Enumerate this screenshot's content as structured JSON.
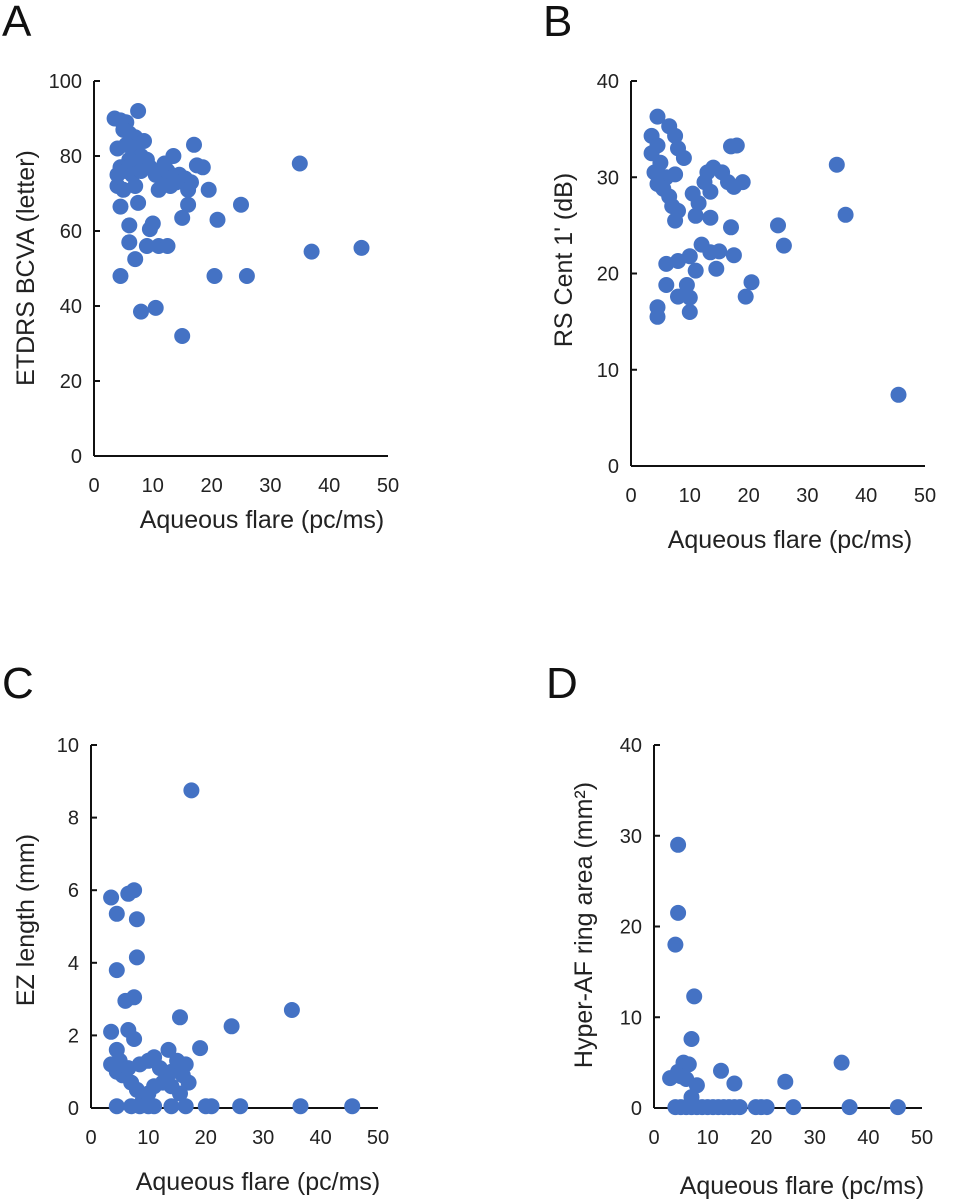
{
  "figure": {
    "panels": [
      "A",
      "B",
      "C",
      "D"
    ]
  },
  "chart_data": [
    {
      "id": "A",
      "type": "scatter",
      "panel_label": "A",
      "title": "",
      "xlabel": "Aqueous flare (pc/ms)",
      "ylabel": "ETDRS BCVA (letter)",
      "xlim": [
        0,
        50
      ],
      "ylim": [
        0,
        100
      ],
      "xticks": [
        "0",
        "10",
        "20",
        "30",
        "40",
        "50"
      ],
      "yticks": [
        "0",
        "20",
        "40",
        "60",
        "80",
        "100"
      ],
      "xtick_values": [
        0,
        10,
        20,
        30,
        40,
        50
      ],
      "ytick_values": [
        0,
        20,
        40,
        60,
        80,
        100
      ],
      "color": "#4472C4",
      "grid": false,
      "points": [
        [
          3.5,
          90
        ],
        [
          4.5,
          89.5
        ],
        [
          5.5,
          89
        ],
        [
          7.5,
          92
        ],
        [
          5,
          87
        ],
        [
          6,
          86
        ],
        [
          7,
          85
        ],
        [
          8.5,
          84
        ],
        [
          4,
          82
        ],
        [
          5.5,
          83
        ],
        [
          7,
          82
        ],
        [
          8,
          80
        ],
        [
          9,
          79
        ],
        [
          6,
          79
        ],
        [
          7.5,
          78
        ],
        [
          4.5,
          77
        ],
        [
          5.5,
          76
        ],
        [
          4,
          75
        ],
        [
          6.5,
          75
        ],
        [
          8,
          76
        ],
        [
          9.5,
          77
        ],
        [
          10.5,
          75
        ],
        [
          11.5,
          74
        ],
        [
          12.5,
          76
        ],
        [
          13.5,
          80
        ],
        [
          12,
          78
        ],
        [
          14.5,
          75
        ],
        [
          15.5,
          74
        ],
        [
          16.5,
          73
        ],
        [
          17,
          83
        ],
        [
          17.5,
          77.5
        ],
        [
          18.5,
          77
        ],
        [
          13,
          72
        ],
        [
          14,
          73
        ],
        [
          11,
          71
        ],
        [
          16,
          71
        ],
        [
          19.5,
          71
        ],
        [
          4,
          72
        ],
        [
          5,
          71
        ],
        [
          7,
          72
        ],
        [
          4.5,
          66.5
        ],
        [
          7.5,
          67.5
        ],
        [
          16,
          67
        ],
        [
          25,
          67
        ],
        [
          21,
          63
        ],
        [
          15,
          63.5
        ],
        [
          10,
          62
        ],
        [
          9.5,
          60.5
        ],
        [
          6,
          61.5
        ],
        [
          6,
          57
        ],
        [
          9,
          56
        ],
        [
          11,
          56
        ],
        [
          12.5,
          56
        ],
        [
          7,
          52.5
        ],
        [
          4.5,
          48
        ],
        [
          20.5,
          48
        ],
        [
          26,
          48
        ],
        [
          35,
          78
        ],
        [
          37,
          54.5
        ],
        [
          45.5,
          55.5
        ],
        [
          8,
          38.5
        ],
        [
          10.5,
          39.5
        ],
        [
          15,
          32
        ]
      ]
    },
    {
      "id": "B",
      "type": "scatter",
      "panel_label": "B",
      "title": "",
      "xlabel": "Aqueous flare (pc/ms)",
      "ylabel": "RS Cent 1' (dB)",
      "xlim": [
        0,
        50
      ],
      "ylim": [
        0,
        40
      ],
      "xticks": [
        "0",
        "10",
        "20",
        "30",
        "40",
        "50"
      ],
      "yticks": [
        "0",
        "10",
        "20",
        "30",
        "40"
      ],
      "xtick_values": [
        0,
        10,
        20,
        30,
        40,
        50
      ],
      "ytick_values": [
        0,
        10,
        20,
        30,
        40
      ],
      "color": "#4472C4",
      "grid": false,
      "points": [
        [
          4.5,
          36.3
        ],
        [
          3.5,
          34.3
        ],
        [
          6.5,
          35.3
        ],
        [
          7.5,
          34.3
        ],
        [
          4.5,
          33.3
        ],
        [
          8,
          33
        ],
        [
          9,
          32
        ],
        [
          3.5,
          32.5
        ],
        [
          5,
          31.5
        ],
        [
          4,
          30.5
        ],
        [
          6,
          30
        ],
        [
          7.5,
          30.3
        ],
        [
          4.5,
          29.3
        ],
        [
          5.5,
          28.8
        ],
        [
          6.5,
          28
        ],
        [
          7,
          27
        ],
        [
          8,
          26.5
        ],
        [
          10.5,
          28.3
        ],
        [
          11.5,
          27.3
        ],
        [
          12.5,
          29.5
        ],
        [
          13,
          30.5
        ],
        [
          14,
          31
        ],
        [
          15.5,
          30.5
        ],
        [
          16.5,
          29.5
        ],
        [
          17.5,
          29
        ],
        [
          19,
          29.5
        ],
        [
          17,
          33.2
        ],
        [
          18,
          33.3
        ],
        [
          13.5,
          28.5
        ],
        [
          11,
          26
        ],
        [
          13.5,
          25.8
        ],
        [
          7.5,
          25.5
        ],
        [
          17,
          24.8
        ],
        [
          25,
          25
        ],
        [
          26,
          22.9
        ],
        [
          12,
          23
        ],
        [
          13.5,
          22.2
        ],
        [
          15,
          22.3
        ],
        [
          17.5,
          21.9
        ],
        [
          14.5,
          20.5
        ],
        [
          8,
          21.3
        ],
        [
          10,
          21.8
        ],
        [
          6,
          21
        ],
        [
          11,
          20.3
        ],
        [
          6,
          18.8
        ],
        [
          9.5,
          18.8
        ],
        [
          8,
          17.6
        ],
        [
          10,
          17.5
        ],
        [
          20.5,
          19.1
        ],
        [
          19.5,
          17.6
        ],
        [
          4.5,
          16.5
        ],
        [
          4.5,
          15.5
        ],
        [
          10,
          16
        ],
        [
          35,
          31.3
        ],
        [
          36.5,
          26.1
        ],
        [
          45.5,
          7.4
        ]
      ]
    },
    {
      "id": "C",
      "type": "scatter",
      "panel_label": "C",
      "title": "",
      "xlabel": "Aqueous flare (pc/ms)",
      "ylabel": "EZ length (mm)",
      "xlim": [
        0,
        50
      ],
      "ylim": [
        0,
        10
      ],
      "xticks": [
        "0",
        "10",
        "20",
        "30",
        "40",
        "50"
      ],
      "yticks": [
        "0",
        "2",
        "4",
        "6",
        "8",
        "10"
      ],
      "xtick_values": [
        0,
        10,
        20,
        30,
        40,
        50
      ],
      "ytick_values": [
        0,
        2,
        4,
        6,
        8,
        10
      ],
      "color": "#4472C4",
      "grid": false,
      "points": [
        [
          17.5,
          8.75
        ],
        [
          3.5,
          5.8
        ],
        [
          6.5,
          5.9
        ],
        [
          7.5,
          6.0
        ],
        [
          4.5,
          5.35
        ],
        [
          8,
          5.2
        ],
        [
          8,
          4.15
        ],
        [
          4.5,
          3.8
        ],
        [
          6,
          2.95
        ],
        [
          7.5,
          3.05
        ],
        [
          15.5,
          2.5
        ],
        [
          24.5,
          2.25
        ],
        [
          35,
          2.7
        ],
        [
          19,
          1.65
        ],
        [
          3.5,
          2.1
        ],
        [
          6.5,
          2.15
        ],
        [
          7.5,
          1.9
        ],
        [
          4.5,
          1.6
        ],
        [
          5,
          1.3
        ],
        [
          3.5,
          1.2
        ],
        [
          4.5,
          1.0
        ],
        [
          5.5,
          0.9
        ],
        [
          6.5,
          1.1
        ],
        [
          7,
          0.7
        ],
        [
          8,
          0.5
        ],
        [
          8.5,
          1.2
        ],
        [
          10,
          1.3
        ],
        [
          11,
          1.4
        ],
        [
          12,
          1.1
        ],
        [
          12.5,
          0.7
        ],
        [
          11,
          0.6
        ],
        [
          10,
          0.4
        ],
        [
          13.5,
          1.6
        ],
        [
          14,
          1.0
        ],
        [
          15,
          1.3
        ],
        [
          16,
          0.9
        ],
        [
          16.5,
          1.2
        ],
        [
          17,
          0.7
        ],
        [
          15.5,
          0.4
        ],
        [
          14,
          0.6
        ],
        [
          9,
          0.2
        ],
        [
          4.5,
          0.05
        ],
        [
          7,
          0.05
        ],
        [
          8.5,
          0.05
        ],
        [
          10,
          0.05
        ],
        [
          11,
          0.05
        ],
        [
          14,
          0.05
        ],
        [
          16.5,
          0.05
        ],
        [
          20,
          0.05
        ],
        [
          21,
          0.05
        ],
        [
          26,
          0.05
        ],
        [
          36.5,
          0.05
        ],
        [
          45.5,
          0.05
        ]
      ]
    },
    {
      "id": "D",
      "type": "scatter",
      "panel_label": "D",
      "title": "",
      "xlabel": "Aqueous flare (pc/ms)",
      "ylabel": "Hyper-AF ring area (mm²)",
      "xlim": [
        0,
        50
      ],
      "ylim": [
        0,
        40
      ],
      "xticks": [
        "0",
        "10",
        "20",
        "30",
        "40",
        "50"
      ],
      "yticks": [
        "0",
        "10",
        "20",
        "30",
        "40"
      ],
      "xtick_values": [
        0,
        10,
        20,
        30,
        40,
        50
      ],
      "ytick_values": [
        0,
        10,
        20,
        30,
        40
      ],
      "color": "#4472C4",
      "grid": false,
      "points": [
        [
          4.5,
          29
        ],
        [
          4.5,
          21.5
        ],
        [
          4,
          18
        ],
        [
          7.5,
          12.3
        ],
        [
          7,
          7.6
        ],
        [
          5.5,
          5.0
        ],
        [
          6.5,
          4.8
        ],
        [
          4.5,
          4.0
        ],
        [
          3,
          3.3
        ],
        [
          5,
          3.5
        ],
        [
          6,
          3.2
        ],
        [
          8,
          2.5
        ],
        [
          12.5,
          4.1
        ],
        [
          15,
          2.7
        ],
        [
          24.5,
          2.9
        ],
        [
          35,
          5.0
        ],
        [
          7,
          1.2
        ],
        [
          4,
          0.1
        ],
        [
          5,
          0.1
        ],
        [
          6,
          0.1
        ],
        [
          7,
          0.1
        ],
        [
          8,
          0.1
        ],
        [
          9,
          0.1
        ],
        [
          10,
          0.1
        ],
        [
          11,
          0.1
        ],
        [
          12,
          0.1
        ],
        [
          13,
          0.1
        ],
        [
          14,
          0.1
        ],
        [
          15,
          0.1
        ],
        [
          16,
          0.1
        ],
        [
          19,
          0.1
        ],
        [
          20,
          0.1
        ],
        [
          21,
          0.1
        ],
        [
          26,
          0.1
        ],
        [
          36.5,
          0.1
        ],
        [
          45.5,
          0.1
        ]
      ]
    }
  ]
}
